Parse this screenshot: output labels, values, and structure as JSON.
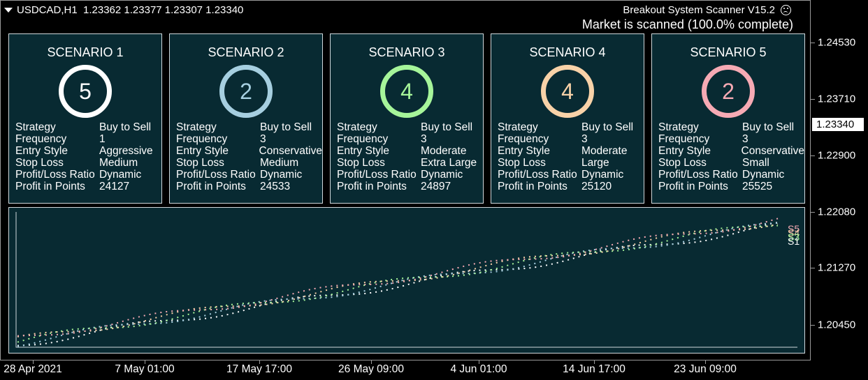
{
  "header": {
    "symbol_line": "USDCAD,H1  1.23362 1.23377 1.23307 1.23340",
    "indicator_title": "Breakout System Scanner V15.2",
    "status": "Market is scanned (100.0% complete)",
    "status_icon": "sad-face-icon"
  },
  "price_axis": {
    "labels": [
      "1.24530",
      "1.23710",
      "1.22900",
      "1.22080",
      "1.21270",
      "1.20450"
    ],
    "current": "1.23340"
  },
  "time_axis": {
    "labels": [
      "28 Apr 2021",
      "7 May 01:00",
      "17 May 17:00",
      "26 May 09:00",
      "4 Jun 01:00",
      "14 Jun 17:00",
      "23 Jun 09:00"
    ]
  },
  "scenarios": [
    {
      "title": "SCENARIO 1",
      "count": "5",
      "color": "#ffffff",
      "rows": [
        [
          "Strategy",
          "Buy to Sell"
        ],
        [
          "Frequency",
          "1"
        ],
        [
          "Entry Style",
          "Aggressive"
        ],
        [
          "Stop Loss",
          "Medium"
        ],
        [
          "Profit/Loss Ratio",
          "Dynamic"
        ],
        [
          "Profit in Points",
          "24127"
        ]
      ]
    },
    {
      "title": "SCENARIO 2",
      "count": "2",
      "color": "#a6cfe0",
      "rows": [
        [
          "Strategy",
          "Buy to Sell"
        ],
        [
          "Frequency",
          "3"
        ],
        [
          "Entry Style",
          "Conservative"
        ],
        [
          "Stop Loss",
          "Medium"
        ],
        [
          "Profit/Loss Ratio",
          "Dynamic"
        ],
        [
          "Profit in Points",
          "24533"
        ]
      ]
    },
    {
      "title": "SCENARIO 3",
      "count": "4",
      "color": "#a6f59a",
      "rows": [
        [
          "Strategy",
          "Buy to Sell"
        ],
        [
          "Frequency",
          "3"
        ],
        [
          "Entry Style",
          "Moderate"
        ],
        [
          "Stop Loss",
          "Extra Large"
        ],
        [
          "Profit/Loss Ratio",
          "Dynamic"
        ],
        [
          "Profit in Points",
          "24897"
        ]
      ]
    },
    {
      "title": "SCENARIO 4",
      "count": "4",
      "color": "#f8d2a8",
      "rows": [
        [
          "Strategy",
          "Buy to Sell"
        ],
        [
          "Frequency",
          "3"
        ],
        [
          "Entry Style",
          "Moderate"
        ],
        [
          "Stop Loss",
          "Large"
        ],
        [
          "Profit/Loss Ratio",
          "Dynamic"
        ],
        [
          "Profit in Points",
          "25120"
        ]
      ]
    },
    {
      "title": "SCENARIO 5",
      "count": "2",
      "color": "#f6aab4",
      "rows": [
        [
          "Strategy",
          "Buy to Sell"
        ],
        [
          "Frequency",
          "3"
        ],
        [
          "Entry Style",
          "Conservative"
        ],
        [
          "Stop Loss",
          "Small"
        ],
        [
          "Profit/Loss Ratio",
          "Dynamic"
        ],
        [
          "Profit in Points",
          "25525"
        ]
      ]
    }
  ],
  "equity_legend": [
    "S5",
    "S4",
    "S3",
    "S1"
  ]
}
